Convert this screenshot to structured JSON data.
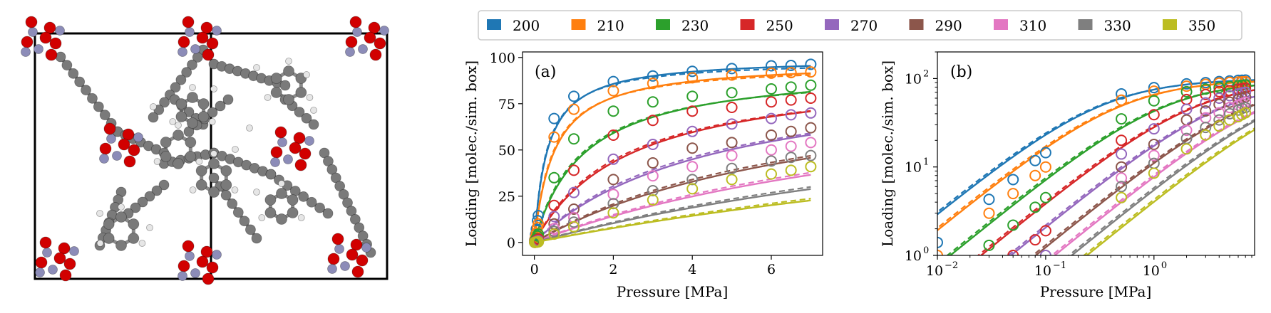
{
  "legend": {
    "entries": [
      {
        "label": "200",
        "color": "#1f77b4"
      },
      {
        "label": "210",
        "color": "#ff7f0e"
      },
      {
        "label": "230",
        "color": "#2ca02c"
      },
      {
        "label": "250",
        "color": "#d62728"
      },
      {
        "label": "270",
        "color": "#9467bd"
      },
      {
        "label": "290",
        "color": "#8c564b"
      },
      {
        "label": "310",
        "color": "#e377c2"
      },
      {
        "label": "330",
        "color": "#7f7f7f"
      },
      {
        "label": "350",
        "color": "#bcbd22"
      }
    ]
  },
  "molecule": {
    "description_visible": false,
    "atom_colors": {
      "carbon": "#7a7a7a",
      "oxygen": "#d10000",
      "metal": "#8c8cb8",
      "hydrogen": "#e6e6e6"
    }
  },
  "chart_data": [
    {
      "type": "line",
      "panel_label": "(a)",
      "xlabel": "Pressure [MPa]",
      "ylabel": "Loading [molec./sim. box]",
      "xlim": [
        -0.3,
        7.3
      ],
      "ylim": [
        -7,
        103
      ],
      "xscale": "linear",
      "yscale": "linear",
      "xticks": [
        0,
        2,
        4,
        6
      ],
      "xticklabels": [
        "0",
        "2",
        "4",
        "6"
      ],
      "yticks": [
        0,
        25,
        50,
        75,
        100
      ],
      "yticklabels": [
        "0",
        "25",
        "50",
        "75",
        "100"
      ],
      "grid": false,
      "pressures_MPa": [
        0.01,
        0.03,
        0.05,
        0.08,
        0.1,
        0.5,
        1,
        2,
        3,
        4,
        5,
        6,
        6.5,
        7
      ],
      "series": [
        {
          "name": "200",
          "points_y": [
            1.4,
            4.3,
            7.2,
            11.8,
            14.5,
            67,
            79,
            87,
            90,
            92.5,
            94,
            95.5,
            95.7,
            96.3
          ],
          "qmax": 100,
          "K": 3.0
        },
        {
          "name": "210",
          "points_y": [
            1.0,
            3.0,
            5.0,
            8.0,
            10.0,
            57,
            72,
            82,
            86,
            89,
            90.5,
            91.5,
            91.8,
            92.2
          ],
          "qmax": 98,
          "K": 2.0
        },
        {
          "name": "230",
          "points_y": [
            0.4,
            1.3,
            2.2,
            3.5,
            4.5,
            35,
            56,
            71,
            76,
            79,
            81,
            83,
            84,
            85
          ],
          "qmax": 96,
          "K": 0.8
        },
        {
          "name": "250",
          "points_y": [
            0.2,
            0.6,
            1.0,
            1.5,
            1.9,
            20,
            39,
            58,
            66,
            71,
            73,
            76,
            77,
            78
          ],
          "qmax": 95,
          "K": 0.42
        },
        {
          "name": "270",
          "points_y": [
            0.1,
            0.3,
            0.5,
            0.8,
            1.0,
            14,
            27,
            45,
            53,
            60,
            64,
            67,
            69,
            70
          ],
          "qmax": 96,
          "K": 0.22
        },
        {
          "name": "290",
          "points_y": [
            0.07,
            0.2,
            0.33,
            0.5,
            0.66,
            10,
            18,
            34,
            43,
            51,
            54,
            58,
            60,
            62
          ],
          "qmax": 96,
          "K": 0.13
        },
        {
          "name": "310",
          "points_y": [
            0.05,
            0.15,
            0.25,
            0.4,
            0.5,
            7.5,
            13.5,
            26,
            36,
            41,
            47,
            50,
            52,
            54
          ],
          "qmax": 98,
          "K": 0.085
        },
        {
          "name": "330",
          "points_y": [
            0.04,
            0.12,
            0.2,
            0.3,
            0.38,
            6,
            11,
            21,
            28,
            34,
            40,
            44,
            46,
            47
          ],
          "qmax": 100,
          "K": 0.058
        },
        {
          "name": "350",
          "points_y": [
            0.03,
            0.09,
            0.15,
            0.24,
            0.3,
            4.5,
            8.5,
            16,
            23,
            29,
            34,
            37,
            39,
            41
          ],
          "qmax": 100,
          "K": 0.042
        }
      ]
    },
    {
      "type": "line",
      "panel_label": "(b)",
      "xlabel": "Pressure [MPa]",
      "ylabel": "Loading [molec./sim. box]",
      "xscale": "log",
      "yscale": "log",
      "xlim": [
        0.01,
        8.5
      ],
      "ylim": [
        1,
        200
      ],
      "xticks": [
        0.01,
        0.1,
        1
      ],
      "xticklabels": [
        "10",
        "10",
        "10"
      ],
      "xtickexponents": [
        "−2",
        "−1",
        "0"
      ],
      "yticks": [
        1,
        10,
        100
      ],
      "yticklabels": [
        "10",
        "10",
        "10"
      ],
      "ytickexponents": [
        "0",
        "1",
        "2"
      ],
      "grid": false,
      "same_series_as": "(a)"
    }
  ]
}
